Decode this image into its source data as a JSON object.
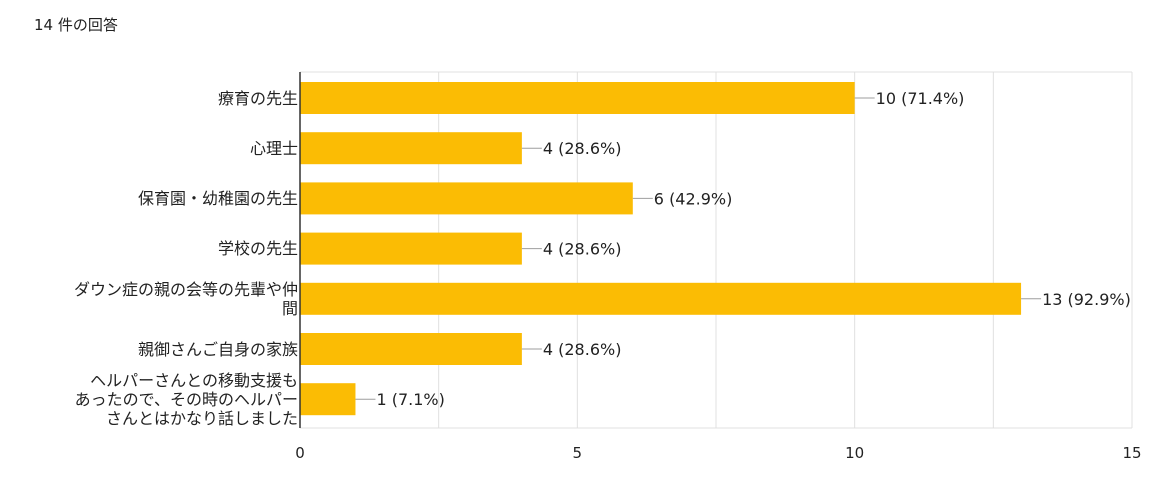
{
  "summary": {
    "response_count": "14 件の回答"
  },
  "colors": {
    "bar": "#FBBC04",
    "grid": "#E0E0E0",
    "axis": "#333333",
    "leader": "#9E9E9E"
  },
  "chart_data": {
    "type": "bar",
    "orientation": "horizontal",
    "categories": [
      "療育の先生",
      "心理士",
      "保育園・幼稚園の先生",
      "学校の先生",
      "ダウン症の親の会等の先輩や仲間",
      "親御さんご自身の家族",
      "ヘルパーさんとの移動支援もあったので、その時のヘルパーさんとはかなり話しました"
    ],
    "category_lines": [
      [
        "療育の先生"
      ],
      [
        "心理士"
      ],
      [
        "保育園・幼稚園の先生"
      ],
      [
        "学校の先生"
      ],
      [
        "ダウン症の親の会等の先輩や仲",
        "間"
      ],
      [
        "親御さんご自身の家族"
      ],
      [
        "ヘルパーさんとの移動支援も",
        "あったので、その時のヘルパー",
        "さんとはかなり話しました"
      ]
    ],
    "values": [
      10,
      4,
      6,
      4,
      13,
      4,
      1
    ],
    "value_labels": [
      "10 (71.4%)",
      "4 (28.6%)",
      "6 (42.9%)",
      "4 (28.6%)",
      "13 (92.9%)",
      "4 (28.6%)",
      "1 (7.1%)"
    ],
    "xlim": [
      0,
      15
    ],
    "xticks": [
      0,
      5,
      10,
      15
    ],
    "grid": true,
    "legend": "none"
  }
}
